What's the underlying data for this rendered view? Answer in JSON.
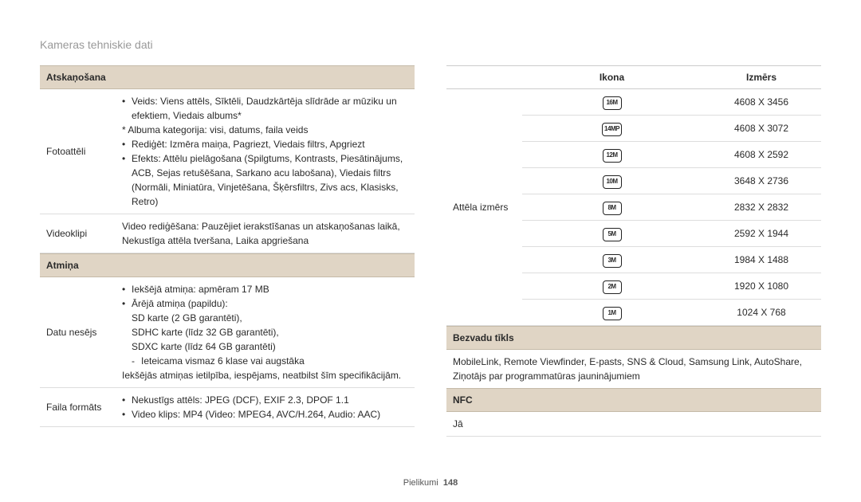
{
  "page": {
    "title": "Kameras tehniskie dati",
    "footer_label": "Pielikumi",
    "page_number": "148"
  },
  "left": {
    "sec_playback": "Atskaņošana",
    "row_photo_label": "Fotoattēli",
    "photo_b1": "Veids: Viens attēls, Sīktēli, Daudzkārtēja slīdrāde ar mūziku un efektiem, Viedais albums*",
    "photo_note": "* Albuma kategorija: visi, datums, faila veids",
    "photo_b2": "Rediģēt: Izmēra maiņa, Pagriezt, Viedais filtrs, Apgriezt",
    "photo_b3": "Efekts: Attēlu pielāgošana (Spilgtums, Kontrasts, Piesātinājums, ACB, Sejas retušēšana, Sarkano acu labošana), Viedais filtrs (Normāli, Miniatūra, Vinjetēšana, Šķērsfiltrs, Zivs acs, Klasisks, Retro)",
    "row_video_label": "Videoklipi",
    "video_text": "Video rediģēšana: Pauzējiet ierakstīšanas un atskaņošanas laikā, Nekustīga attēla tveršana, Laika apgriešana",
    "sec_storage": "Atmiņa",
    "row_media_label": "Datu nesējs",
    "media_b1": "Iekšējā atmiņa: apmēram 17 MB",
    "media_b2": "Ārējā atmiņa (papildu):",
    "media_s1": "SD karte (2 GB garantēti),",
    "media_s2": "SDHC karte (līdz 32 GB garantēti),",
    "media_s3": "SDXC karte (līdz 64 GB garantēti)",
    "media_dash": "Ieteicama vismaz 6 klase vai augstāka",
    "media_note": "Iekšējās atmiņas ietilpība, iespējams, neatbilst šīm specifikācijām.",
    "row_format_label": "Faila formāts",
    "format_b1": "Nekustīgs attēls: JPEG (DCF), EXIF 2.3, DPOF 1.1",
    "format_b2": "Video klips: MP4 (Video: MPEG4, AVC/H.264, Audio: AAC)"
  },
  "right": {
    "head_icon": "Ikona",
    "head_size": "Izmērs",
    "row_label": "Attēla izmērs",
    "sizes": [
      {
        "icon": "16M",
        "dim": "4608 X 3456"
      },
      {
        "icon": "14MP",
        "dim": "4608 X 3072"
      },
      {
        "icon": "12M",
        "dim": "4608 X 2592"
      },
      {
        "icon": "10M",
        "dim": "3648 X 2736"
      },
      {
        "icon": "8M",
        "dim": "2832 X 2832"
      },
      {
        "icon": "5M",
        "dim": "2592 X 1944"
      },
      {
        "icon": "3M",
        "dim": "1984 X 1488"
      },
      {
        "icon": "2M",
        "dim": "1920 X 1080"
      },
      {
        "icon": "1M",
        "dim": "1024 X 768"
      }
    ],
    "sec_wireless": "Bezvadu tīkls",
    "wireless_text": "MobileLink, Remote Viewfinder, E-pasts, SNS & Cloud, Samsung Link, AutoShare, Ziņotājs par programmatūras jauninājumiem",
    "sec_nfc": "NFC",
    "nfc_text": "Jā"
  }
}
